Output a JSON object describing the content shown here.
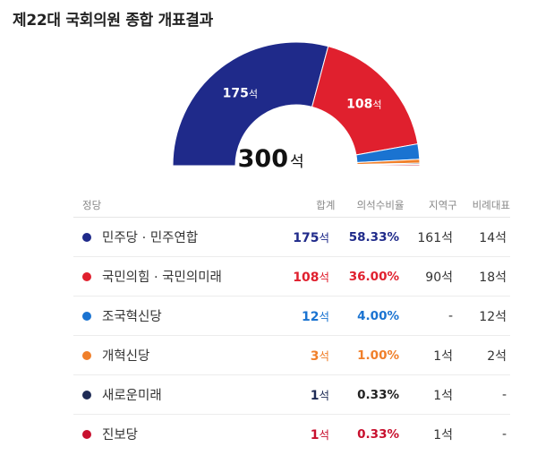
{
  "title": "제22대 국회의원 종합 개표결과",
  "seat_unit": "석",
  "total": {
    "value": "300",
    "unit": "석"
  },
  "headers": {
    "party": "정당",
    "seats": "합계",
    "ratio": "의석수비율",
    "local": "지역구",
    "prop": "비례대표"
  },
  "chart_data": {
    "type": "pie",
    "variant": "semicircle-donut",
    "categories": [
      "민주당 · 민주연합",
      "국민의힘 · 국민의미래",
      "조국혁신당",
      "개혁신당",
      "새로운미래",
      "진보당"
    ],
    "values": [
      175,
      108,
      12,
      3,
      1,
      1
    ],
    "colors": [
      "#1f2a8a",
      "#e0202e",
      "#1a73d1",
      "#f07f2a",
      "#1e2b55",
      "#c8102e"
    ],
    "arc_labels": [
      "175석",
      "108석",
      "",
      "",
      "",
      ""
    ],
    "center_label": "300석",
    "legend": "table-below"
  },
  "rows": [
    {
      "party": "민주당 · 민주연합",
      "seats": "175",
      "ratio": "58.33%",
      "local": "161석",
      "prop": "14석",
      "color": "#1f2a8a"
    },
    {
      "party": "국민의힘 · 국민의미래",
      "seats": "108",
      "ratio": "36.00%",
      "local": "90석",
      "prop": "18석",
      "color": "#e0202e"
    },
    {
      "party": "조국혁신당",
      "seats": "12",
      "ratio": "4.00%",
      "local": "-",
      "prop": "12석",
      "color": "#1a73d1"
    },
    {
      "party": "개혁신당",
      "seats": "3",
      "ratio": "1.00%",
      "local": "1석",
      "prop": "2석",
      "color": "#f07f2a"
    },
    {
      "party": "새로운미래",
      "seats": "1",
      "ratio": "0.33%",
      "local": "1석",
      "prop": "-",
      "color": "#1e2b55"
    },
    {
      "party": "진보당",
      "seats": "1",
      "ratio": "0.33%",
      "local": "1석",
      "prop": "-",
      "color": "#c8102e"
    }
  ]
}
